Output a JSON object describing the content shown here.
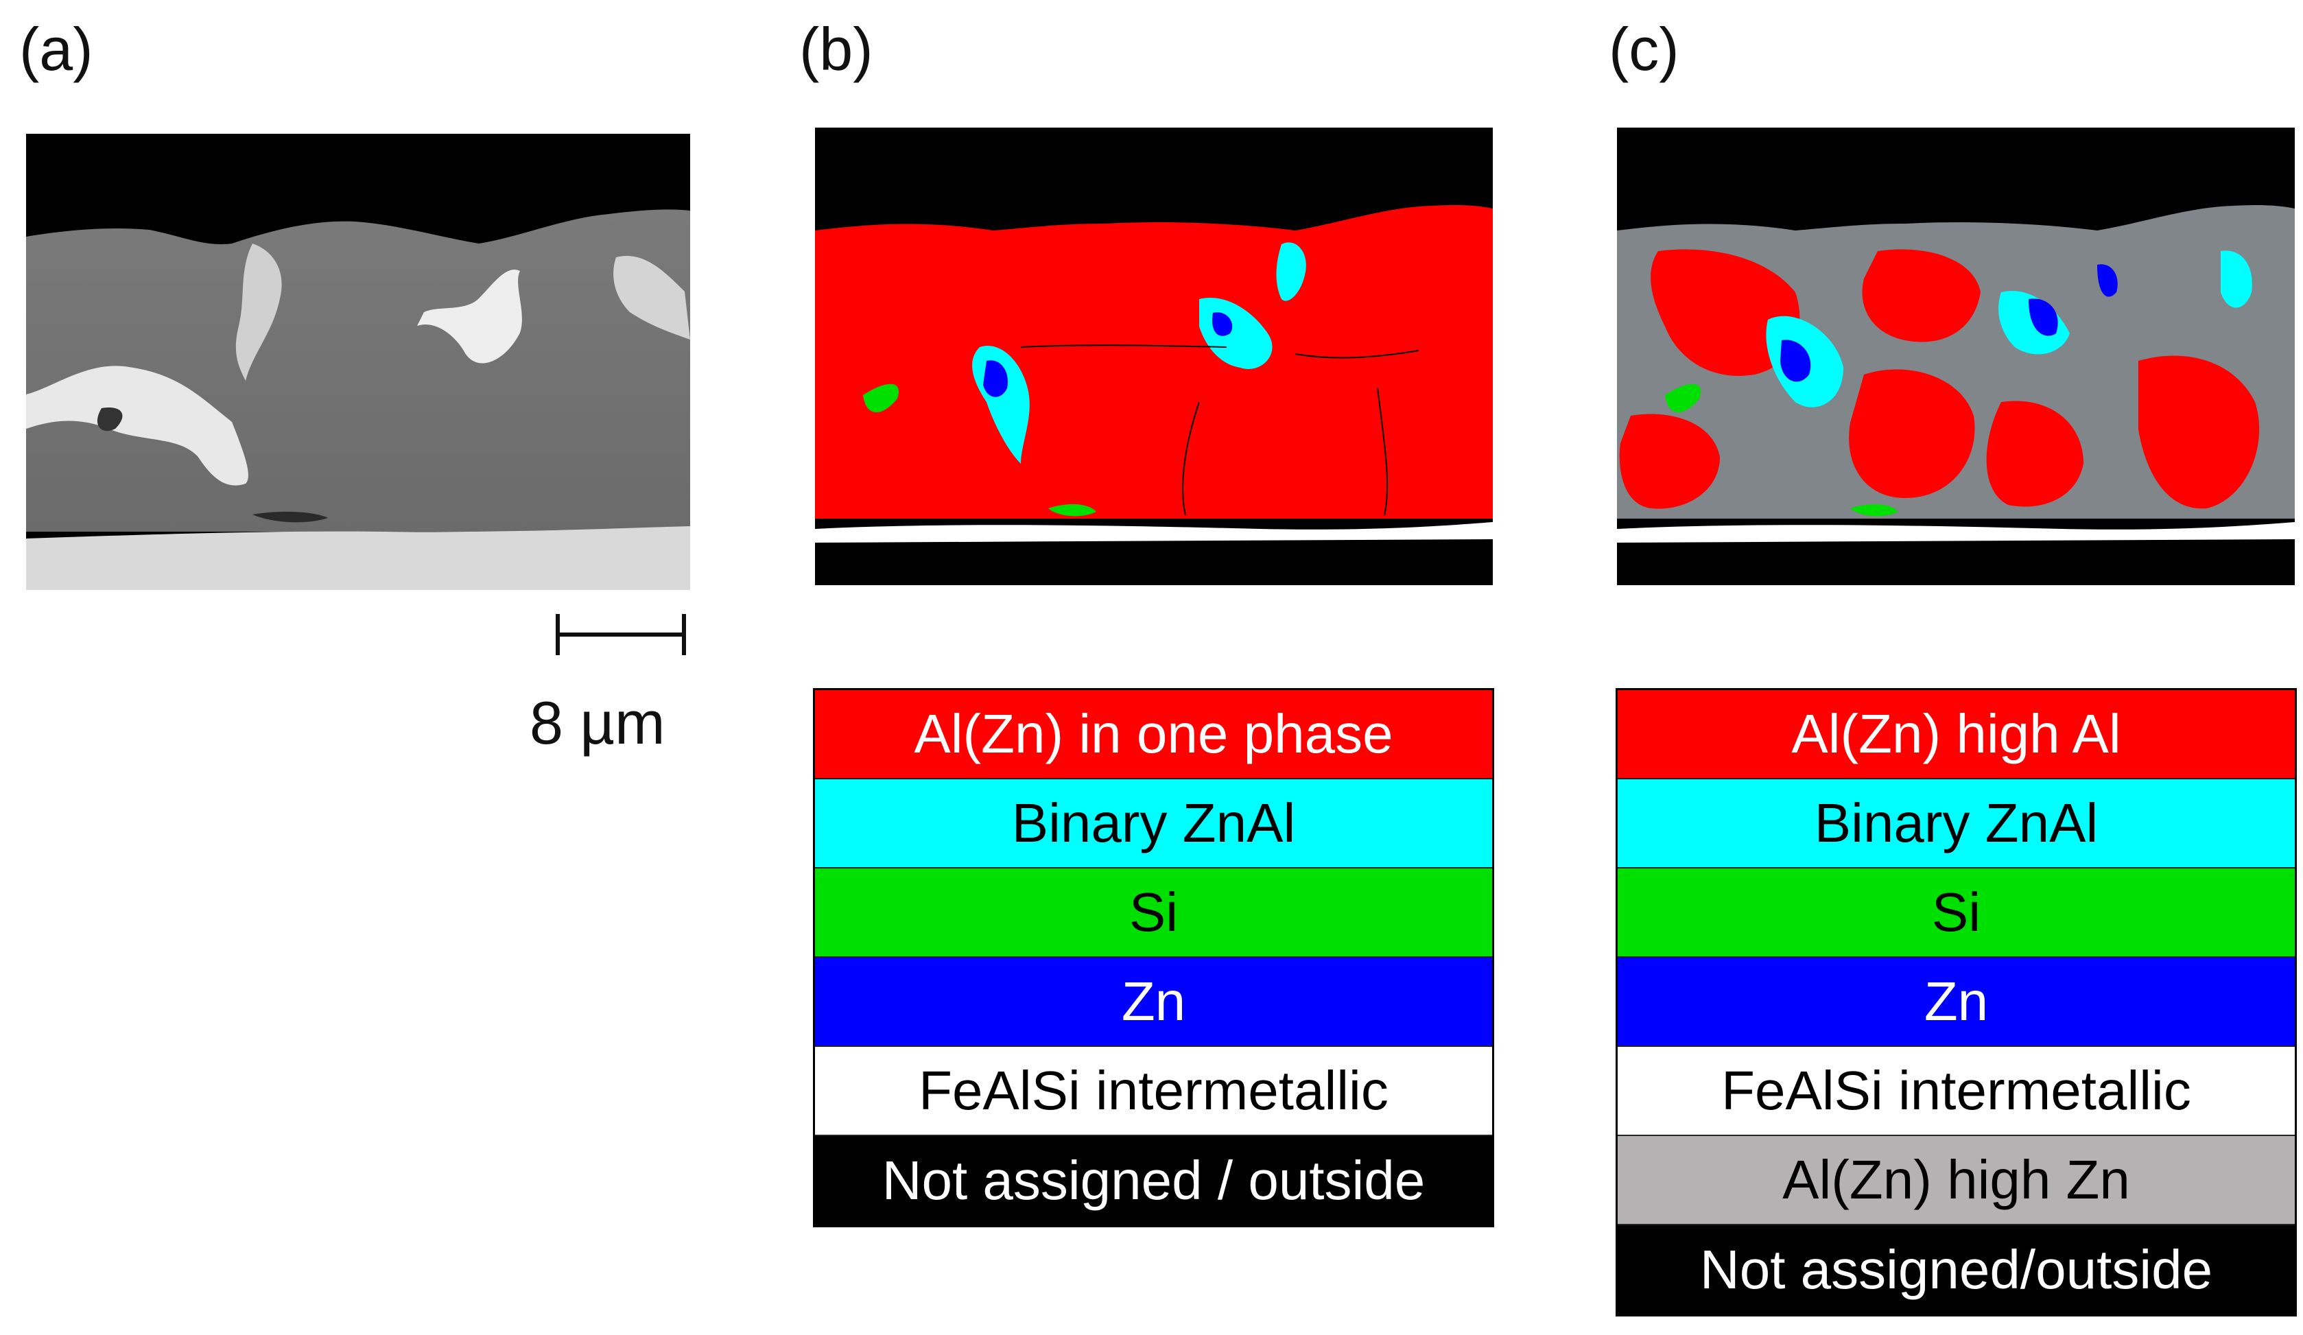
{
  "panels": [
    {
      "letter": "(a)"
    },
    {
      "letter": "(b)"
    },
    {
      "letter": "(c)"
    }
  ],
  "scale_bar": {
    "label": "8 µm"
  },
  "legend_b": [
    {
      "label": "Al(Zn) in one phase",
      "bg": "#ff0000",
      "fg": "#ffffff"
    },
    {
      "label": "Binary ZnAl",
      "bg": "#00ffff",
      "fg": "#000000"
    },
    {
      "label": "Si",
      "bg": "#00e000",
      "fg": "#000000"
    },
    {
      "label": "Zn",
      "bg": "#0000ff",
      "fg": "#ffffff"
    },
    {
      "label": "FeAlSi intermetallic",
      "bg": "#ffffff",
      "fg": "#000000"
    },
    {
      "label": "Not assigned / outside",
      "bg": "#000000",
      "fg": "#ffffff"
    }
  ],
  "legend_c": [
    {
      "label": "Al(Zn) high Al",
      "bg": "#ff0000",
      "fg": "#ffffff"
    },
    {
      "label": "Binary ZnAl",
      "bg": "#00ffff",
      "fg": "#000000"
    },
    {
      "label": "Si",
      "bg": "#00e000",
      "fg": "#000000"
    },
    {
      "label": "Zn",
      "bg": "#0000ff",
      "fg": "#ffffff"
    },
    {
      "label": "FeAlSi intermetallic",
      "bg": "#ffffff",
      "fg": "#000000"
    },
    {
      "label": "Al(Zn) high Zn",
      "bg": "#b4b2b2",
      "fg": "#000000"
    },
    {
      "label": "Not assigned/outside",
      "bg": "#000000",
      "fg": "#ffffff"
    }
  ]
}
